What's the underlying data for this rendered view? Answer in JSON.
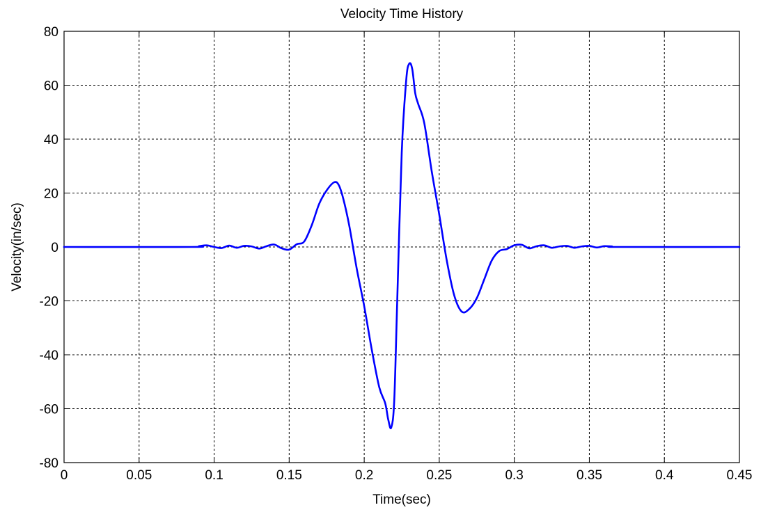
{
  "chart_data": {
    "type": "line",
    "title": "Velocity Time History",
    "xlabel": "Time(sec)",
    "ylabel": "Velocity(in/sec)",
    "xlim": [
      0,
      0.45
    ],
    "ylim": [
      -80,
      80
    ],
    "xticks": [
      0,
      0.05,
      0.1,
      0.15,
      0.2,
      0.25,
      0.3,
      0.35,
      0.4,
      0.45
    ],
    "xtick_labels": [
      "0",
      "0.05",
      "0.1",
      "0.15",
      "0.2",
      "0.25",
      "0.3",
      "0.35",
      "0.4",
      "0.45"
    ],
    "yticks": [
      -80,
      -60,
      -40,
      -20,
      0,
      20,
      40,
      60,
      80
    ],
    "ytick_labels": [
      "-80",
      "-60",
      "-40",
      "-20",
      "0",
      "20",
      "40",
      "60",
      "80"
    ],
    "grid": true,
    "series_color": "#0000ff",
    "series": [
      {
        "x": [
          0,
          0.085,
          0.09,
          0.095,
          0.1,
          0.105,
          0.11,
          0.115,
          0.12,
          0.125,
          0.13,
          0.135,
          0.14,
          0.145,
          0.15,
          0.155,
          0.16,
          0.165,
          0.17,
          0.175,
          0.18,
          0.183,
          0.186,
          0.19,
          0.195,
          0.2,
          0.205,
          0.21,
          0.214,
          0.216,
          0.218,
          0.22,
          0.222,
          0.225,
          0.228,
          0.23,
          0.232,
          0.234,
          0.236,
          0.24,
          0.245,
          0.25,
          0.255,
          0.26,
          0.265,
          0.27,
          0.275,
          0.28,
          0.285,
          0.29,
          0.295,
          0.3,
          0.305,
          0.31,
          0.315,
          0.32,
          0.325,
          0.33,
          0.335,
          0.34,
          0.345,
          0.35,
          0.355,
          0.36,
          0.365,
          0.37,
          0.45
        ],
        "y": [
          0,
          0,
          0.3,
          0.6,
          0,
          -0.4,
          0.5,
          -0.3,
          0.4,
          0.2,
          -0.6,
          0.3,
          0.9,
          -0.5,
          -1,
          1,
          2,
          8,
          16,
          21,
          24,
          23,
          18,
          8,
          -8,
          -22,
          -38,
          -52,
          -58,
          -64,
          -67,
          -57,
          -20,
          35,
          62,
          68,
          66,
          57,
          53,
          46,
          28,
          12,
          -5,
          -18,
          -24,
          -23,
          -19,
          -12,
          -5,
          -1.5,
          -0.8,
          0.6,
          0.8,
          -0.5,
          0.3,
          0.6,
          -0.3,
          0.2,
          0.4,
          -0.3,
          0.2,
          0.4,
          -0.2,
          0.3,
          0.2,
          0,
          0
        ]
      }
    ]
  }
}
